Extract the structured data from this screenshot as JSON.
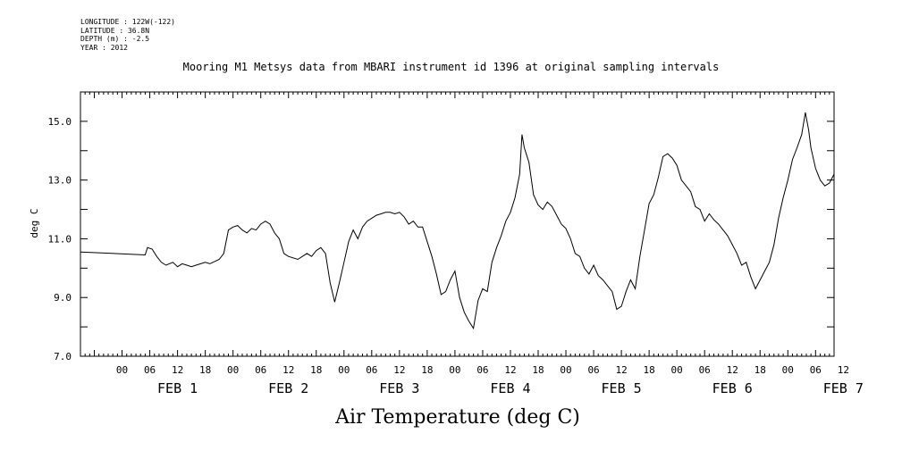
{
  "header": {
    "meta_lines": [
      "LONGITUDE : 122W(-122)",
      "LATITUDE : 36.8N",
      "DEPTH (m) : -2.5",
      "YEAR : 2012"
    ],
    "title": "Mooring M1 Metsys data from MBARI instrument id 1396 at original sampling intervals"
  },
  "chart_data": {
    "type": "line",
    "title": "Mooring M1 Metsys data from MBARI instrument id 1396 at original sampling intervals",
    "xlabel": "Air Temperature (deg C)",
    "ylabel": "deg C",
    "ylim": [
      7.0,
      16.0
    ],
    "xlim_hours": [
      -9,
      154
    ],
    "y_tick_labels": [
      "7.0",
      "9.0",
      "11.0",
      "13.0",
      "15.0"
    ],
    "y_tick_values": [
      7,
      9,
      11,
      13,
      15
    ],
    "x_hour_labels": [
      "00",
      "06",
      "12",
      "18",
      "00",
      "06",
      "12",
      "18",
      "00",
      "06",
      "12",
      "18",
      "00",
      "06",
      "12",
      "18",
      "00",
      "06",
      "12",
      "18",
      "00",
      "06",
      "12",
      "18",
      "00",
      "06",
      "12"
    ],
    "x_day_labels": [
      "FEB 1",
      "FEB 2",
      "FEB 3",
      "FEB 4",
      "FEB 5",
      "FEB 6",
      "FEB 7"
    ],
    "grid": false,
    "series": [
      {
        "values": [
          [
            -9,
            10.55
          ],
          [
            5,
            10.45
          ],
          [
            5.5,
            10.7
          ],
          [
            6.5,
            10.65
          ],
          [
            7.5,
            10.4
          ],
          [
            8.5,
            10.2
          ],
          [
            9.5,
            10.1
          ],
          [
            11,
            10.2
          ],
          [
            12,
            10.05
          ],
          [
            13,
            10.15
          ],
          [
            14,
            10.1
          ],
          [
            15,
            10.05
          ],
          [
            16,
            10.1
          ],
          [
            18,
            10.2
          ],
          [
            19,
            10.15
          ],
          [
            21,
            10.3
          ],
          [
            22,
            10.5
          ],
          [
            23,
            11.3
          ],
          [
            24,
            11.4
          ],
          [
            25,
            11.45
          ],
          [
            26,
            11.3
          ],
          [
            27,
            11.2
          ],
          [
            28,
            11.35
          ],
          [
            29,
            11.3
          ],
          [
            30,
            11.5
          ],
          [
            31,
            11.6
          ],
          [
            32,
            11.5
          ],
          [
            33,
            11.2
          ],
          [
            34,
            11.0
          ],
          [
            35,
            10.5
          ],
          [
            36,
            10.4
          ],
          [
            38,
            10.3
          ],
          [
            40,
            10.5
          ],
          [
            41,
            10.4
          ],
          [
            42,
            10.6
          ],
          [
            43,
            10.7
          ],
          [
            44,
            10.5
          ],
          [
            45,
            9.5
          ],
          [
            46,
            8.85
          ],
          [
            47,
            9.5
          ],
          [
            48,
            10.2
          ],
          [
            49,
            10.9
          ],
          [
            50,
            11.3
          ],
          [
            51,
            11.0
          ],
          [
            52,
            11.4
          ],
          [
            53,
            11.6
          ],
          [
            54,
            11.7
          ],
          [
            55,
            11.8
          ],
          [
            56,
            11.85
          ],
          [
            57,
            11.9
          ],
          [
            58,
            11.9
          ],
          [
            59,
            11.85
          ],
          [
            60,
            11.9
          ],
          [
            61,
            11.75
          ],
          [
            62,
            11.5
          ],
          [
            63,
            11.6
          ],
          [
            64,
            11.4
          ],
          [
            65,
            11.4
          ],
          [
            66,
            10.9
          ],
          [
            67,
            10.4
          ],
          [
            68,
            9.8
          ],
          [
            69,
            9.1
          ],
          [
            70,
            9.2
          ],
          [
            71,
            9.6
          ],
          [
            72,
            9.9
          ],
          [
            73,
            9.0
          ],
          [
            74,
            8.5
          ],
          [
            75,
            8.2
          ],
          [
            76,
            7.95
          ],
          [
            77,
            8.9
          ],
          [
            78,
            9.3
          ],
          [
            79,
            9.2
          ],
          [
            80,
            10.2
          ],
          [
            81,
            10.7
          ],
          [
            82,
            11.1
          ],
          [
            83,
            11.6
          ],
          [
            84,
            11.9
          ],
          [
            85,
            12.4
          ],
          [
            86,
            13.2
          ],
          [
            86.5,
            14.55
          ],
          [
            87,
            14.1
          ],
          [
            88,
            13.6
          ],
          [
            89,
            12.5
          ],
          [
            90,
            12.15
          ],
          [
            91,
            12.0
          ],
          [
            92,
            12.25
          ],
          [
            93,
            12.1
          ],
          [
            94,
            11.8
          ],
          [
            95,
            11.5
          ],
          [
            96,
            11.35
          ],
          [
            97,
            11.0
          ],
          [
            98,
            10.5
          ],
          [
            99,
            10.4
          ],
          [
            100,
            10.0
          ],
          [
            101,
            9.8
          ],
          [
            102,
            10.1
          ],
          [
            103,
            9.75
          ],
          [
            104,
            9.6
          ],
          [
            105,
            9.4
          ],
          [
            106,
            9.2
          ],
          [
            107,
            8.6
          ],
          [
            108,
            8.7
          ],
          [
            109,
            9.2
          ],
          [
            110,
            9.6
          ],
          [
            111,
            9.3
          ],
          [
            112,
            10.4
          ],
          [
            113,
            11.3
          ],
          [
            114,
            12.2
          ],
          [
            115,
            12.5
          ],
          [
            116,
            13.1
          ],
          [
            117,
            13.8
          ],
          [
            118,
            13.9
          ],
          [
            119,
            13.75
          ],
          [
            120,
            13.5
          ],
          [
            121,
            13.0
          ],
          [
            122,
            12.8
          ],
          [
            123,
            12.6
          ],
          [
            124,
            12.1
          ],
          [
            125,
            12.0
          ],
          [
            126,
            11.6
          ],
          [
            127,
            11.85
          ],
          [
            128,
            11.65
          ],
          [
            129,
            11.5
          ],
          [
            130,
            11.3
          ],
          [
            131,
            11.1
          ],
          [
            132,
            10.8
          ],
          [
            133,
            10.5
          ],
          [
            134,
            10.1
          ],
          [
            135,
            10.2
          ],
          [
            136,
            9.7
          ],
          [
            137,
            9.3
          ],
          [
            138,
            9.6
          ],
          [
            139,
            9.9
          ],
          [
            140,
            10.2
          ],
          [
            141,
            10.8
          ],
          [
            142,
            11.7
          ],
          [
            143,
            12.4
          ],
          [
            144,
            13.0
          ],
          [
            145,
            13.7
          ],
          [
            146,
            14.1
          ],
          [
            147,
            14.55
          ],
          [
            147.8,
            15.3
          ],
          [
            148.5,
            14.7
          ],
          [
            149,
            14.1
          ],
          [
            150,
            13.4
          ],
          [
            151,
            13.0
          ],
          [
            152,
            12.8
          ],
          [
            153,
            12.9
          ],
          [
            154,
            13.2
          ]
        ]
      }
    ]
  }
}
